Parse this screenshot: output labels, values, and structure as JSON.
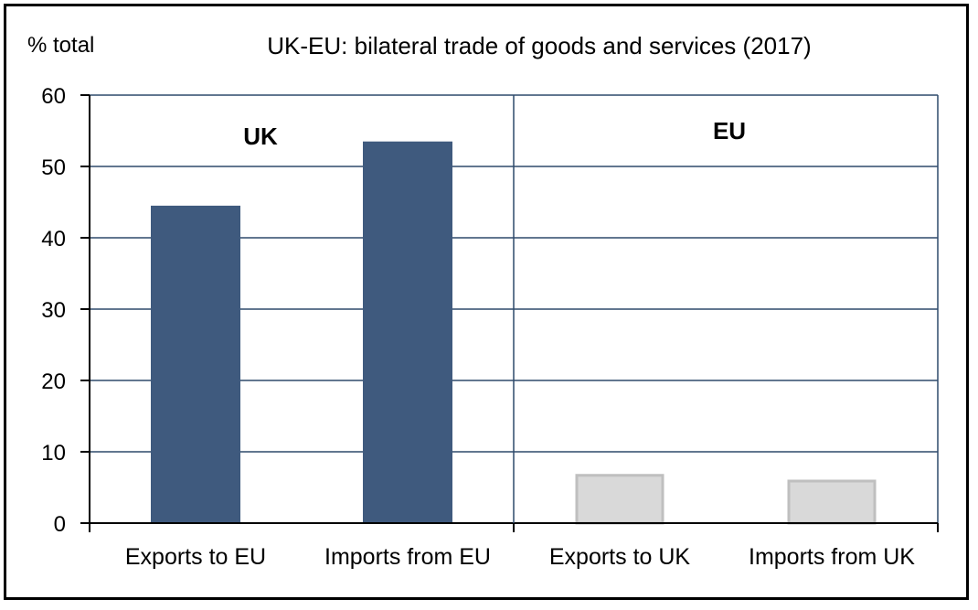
{
  "chart_data": {
    "type": "bar",
    "title": "UK-EU: bilateral trade of goods and services (2017)",
    "ylabel": "% total",
    "xlabel": "",
    "ylim": [
      0,
      60
    ],
    "yticks": [
      0,
      10,
      20,
      30,
      40,
      50,
      60
    ],
    "grid": true,
    "groups": [
      {
        "label": "UK",
        "color": "#3f5a7e",
        "bars": [
          {
            "category": "Exports to EU",
            "value": 44.5
          },
          {
            "category": "Imports from EU",
            "value": 53.5
          }
        ]
      },
      {
        "label": "EU",
        "color": "#d9d9d9",
        "edge": "#bfbfbf",
        "bars": [
          {
            "category": "Exports to UK",
            "value": 6.7
          },
          {
            "category": "Imports from UK",
            "value": 5.9
          }
        ]
      }
    ]
  }
}
